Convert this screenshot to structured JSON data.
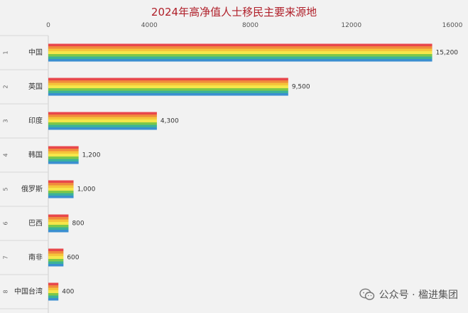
{
  "chart_data": {
    "type": "bar",
    "orientation": "horizontal",
    "title": "2024年高净值人士移民主要来源地",
    "ranks": [
      "1",
      "2",
      "3",
      "4",
      "5",
      "6",
      "7",
      "8"
    ],
    "categories": [
      "中国",
      "英国",
      "印度",
      "韩国",
      "俄罗斯",
      "巴西",
      "南非",
      "中国台湾"
    ],
    "values": [
      15200,
      9500,
      4300,
      1200,
      1000,
      800,
      600,
      400
    ],
    "value_labels": [
      "15,200",
      "9,500",
      "4,300",
      "1,200",
      "1,000",
      "800",
      "600",
      "400"
    ],
    "xlim": [
      0,
      16000
    ],
    "xticks": [
      "0",
      "4000",
      "8000",
      "12000",
      "16000"
    ],
    "xaxis_position": "top",
    "grid": false,
    "bar_fill": "rainbow stripes",
    "colors": [
      "#e8474b",
      "#f08a3c",
      "#f5c43a",
      "#f5e64a",
      "#7cc84a",
      "#3bb29a",
      "#3a8fd0"
    ]
  },
  "watermark": {
    "icon": "wechat-icon",
    "text": "公众号 · 楹进集团"
  }
}
